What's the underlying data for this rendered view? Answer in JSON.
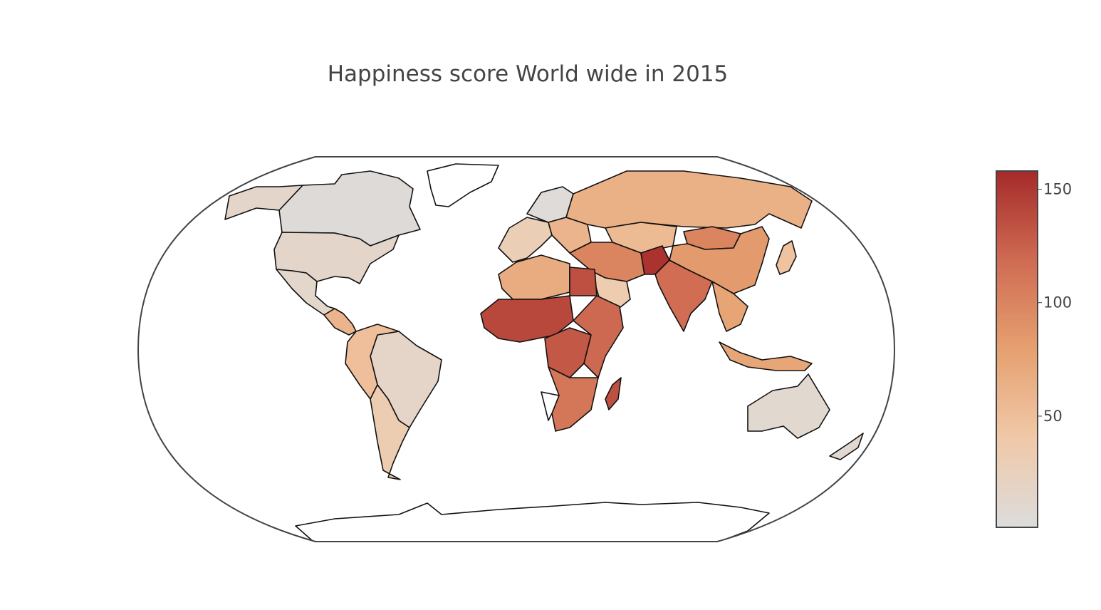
{
  "title": "Happiness score World wide in 2015",
  "colorbar": {
    "min": 1,
    "max": 158,
    "ticks": [
      {
        "value": 50,
        "label": "50"
      },
      {
        "value": 100,
        "label": "100"
      },
      {
        "value": 150,
        "label": "150"
      }
    ],
    "colorscale": [
      "#dcdcdc",
      "#f0c9a8",
      "#e6a070",
      "#cf6b52",
      "#a52a2a"
    ]
  },
  "projection": "robinson",
  "regions": [
    {
      "name": "Canada",
      "value": 5
    },
    {
      "name": "Alaska",
      "value": 15
    },
    {
      "name": "United States",
      "value": 15
    },
    {
      "name": "Mexico",
      "value": 14
    },
    {
      "name": "Central America",
      "value": 60
    },
    {
      "name": "Greenland",
      "value": null
    },
    {
      "name": "Brazil",
      "value": 16
    },
    {
      "name": "Andean South America",
      "value": 50
    },
    {
      "name": "Southern Cone",
      "value": 33
    },
    {
      "name": "Northern Europe",
      "value": 4
    },
    {
      "name": "Western Europe",
      "value": 30
    },
    {
      "name": "Eastern Europe",
      "value": 60
    },
    {
      "name": "Russia",
      "value": 64
    },
    {
      "name": "Kazakhstan",
      "value": 54
    },
    {
      "name": "Middle East",
      "value": 100
    },
    {
      "name": "Arabian Peninsula",
      "value": 35
    },
    {
      "name": "Afghanistan",
      "value": 153
    },
    {
      "name": "India",
      "value": 117
    },
    {
      "name": "China",
      "value": 84
    },
    {
      "name": "Mongolia",
      "value": 100
    },
    {
      "name": "Japan",
      "value": 46
    },
    {
      "name": "Southeast Asia",
      "value": 75
    },
    {
      "name": "Indonesia",
      "value": 74
    },
    {
      "name": "Australia",
      "value": 10
    },
    {
      "name": "New Zealand",
      "value": 9
    },
    {
      "name": "North Africa",
      "value": 68
    },
    {
      "name": "Egypt",
      "value": 135
    },
    {
      "name": "West Africa",
      "value": 140
    },
    {
      "name": "Central Africa",
      "value": 130
    },
    {
      "name": "East Africa",
      "value": 120
    },
    {
      "name": "Southern Africa",
      "value": 110
    },
    {
      "name": "Namibia",
      "value": null
    },
    {
      "name": "Madagascar",
      "value": 135
    },
    {
      "name": "Antarctica",
      "value": null
    }
  ]
}
